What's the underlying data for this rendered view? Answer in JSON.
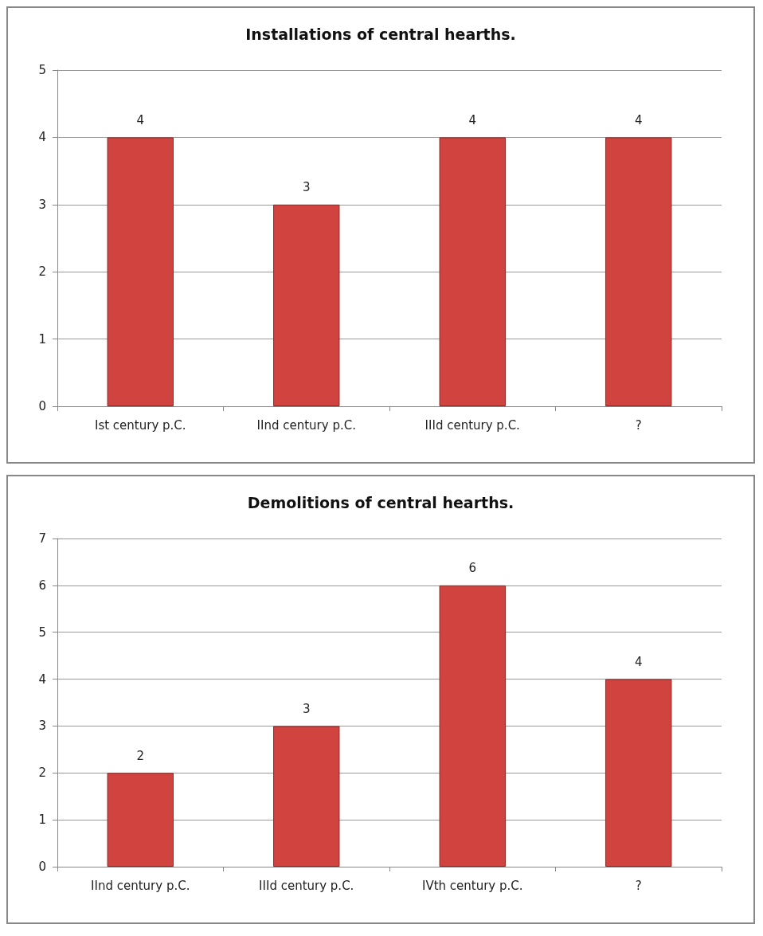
{
  "chart_data": [
    {
      "type": "bar",
      "title": "Installations of central hearths.",
      "categories": [
        "Ist century p.C.",
        "IInd century p.C.",
        "IIId century p.C.",
        "?"
      ],
      "values": [
        4,
        3,
        4,
        4
      ],
      "color": "#d0433f",
      "ylim": [
        0,
        5
      ],
      "yticks": [
        0,
        1,
        2,
        3,
        4,
        5
      ],
      "grid": "y",
      "data_labels": true
    },
    {
      "type": "bar",
      "title": "Demolitions of central hearths.",
      "categories": [
        "IInd century p.C.",
        "IIId century p.C.",
        "IVth century p.C.",
        "?"
      ],
      "values": [
        2,
        3,
        6,
        4
      ],
      "color": "#d0433f",
      "ylim": [
        0,
        7
      ],
      "yticks": [
        0,
        1,
        2,
        3,
        4,
        5,
        6,
        7
      ],
      "grid": "y",
      "data_labels": true
    }
  ]
}
